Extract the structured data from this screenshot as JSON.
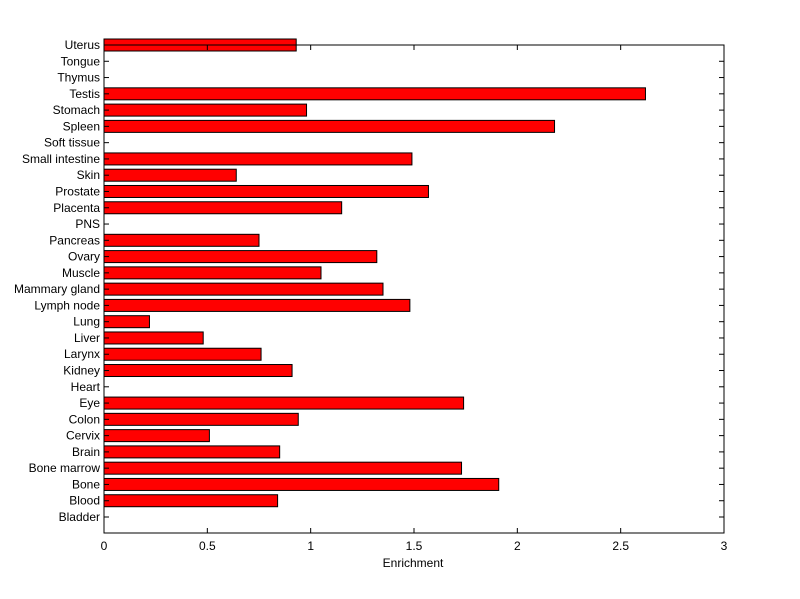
{
  "chart_data": {
    "type": "bar",
    "orientation": "horizontal",
    "categories": [
      "Bladder",
      "Blood",
      "Bone",
      "Bone marrow",
      "Brain",
      "Cervix",
      "Colon",
      "Eye",
      "Heart",
      "Kidney",
      "Larynx",
      "Liver",
      "Lung",
      "Lymph node",
      "Mammary gland",
      "Muscle",
      "Ovary",
      "Pancreas",
      "PNS",
      "Placenta",
      "Prostate",
      "Skin",
      "Small intestine",
      "Soft tissue",
      "Spleen",
      "Stomach",
      "Testis",
      "Thymus",
      "Tongue",
      "Uterus"
    ],
    "values": [
      0,
      0.84,
      1.91,
      1.73,
      0.85,
      0.51,
      0.94,
      1.74,
      0,
      0.91,
      0.76,
      0.48,
      0.22,
      1.48,
      1.35,
      1.05,
      1.32,
      0.75,
      0,
      1.15,
      1.57,
      0.64,
      1.49,
      0,
      2.18,
      0.98,
      2.62,
      0,
      0,
      0.93
    ],
    "xlabel": "Enrichment",
    "ylabel": "",
    "title": "",
    "xlim": [
      0,
      3
    ],
    "xticks": [
      "0",
      "0.5",
      "1",
      "1.5",
      "2",
      "2.5",
      "3"
    ],
    "bar_color": "#ff0000",
    "grid": false,
    "legend": "none"
  }
}
